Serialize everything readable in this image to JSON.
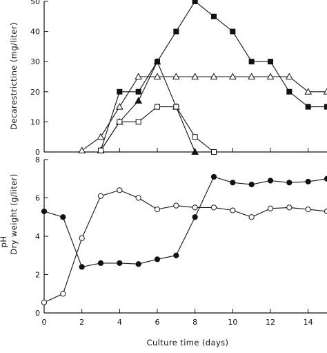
{
  "chart_data": [
    {
      "type": "line",
      "xlabel": "",
      "ylabel": "Decarestrictine (mg/liter)",
      "xlim": [
        0,
        15
      ],
      "ylim": [
        0,
        50
      ],
      "xticks": [
        0,
        2,
        4,
        6,
        8,
        10,
        12,
        14
      ],
      "yticks": [
        0,
        10,
        20,
        30,
        40,
        50
      ],
      "x_tick_labels_shown": false,
      "series": [
        {
          "marker": "filled-square",
          "x": [
            3,
            4,
            5,
            6,
            7,
            8,
            9,
            10,
            11,
            12,
            13,
            14,
            15
          ],
          "y": [
            0.5,
            20,
            20,
            30,
            40,
            50,
            45,
            40,
            30,
            30,
            20,
            15,
            15
          ]
        },
        {
          "marker": "open-triangle",
          "x": [
            2,
            3,
            4,
            5,
            6,
            7,
            8,
            9,
            10,
            11,
            12,
            13,
            14,
            15
          ],
          "y": [
            0.5,
            5,
            15,
            25,
            25,
            25,
            25,
            25,
            25,
            25,
            25,
            25,
            20,
            20
          ]
        },
        {
          "marker": "filled-triangle",
          "x": [
            3,
            4,
            5,
            6,
            7,
            8
          ],
          "y": [
            0.5,
            10,
            17,
            30,
            15,
            0
          ]
        },
        {
          "marker": "open-square",
          "x": [
            3,
            4,
            5,
            6,
            7,
            8,
            9
          ],
          "y": [
            0.5,
            10,
            10,
            15,
            15,
            5,
            0
          ]
        }
      ]
    },
    {
      "type": "line",
      "xlabel": "Culture time (days)",
      "ylabel": "pH\nDry weight (g/liter)",
      "xlim": [
        0,
        15
      ],
      "ylim": [
        0,
        8
      ],
      "xticks": [
        0,
        2,
        4,
        6,
        8,
        10,
        12,
        14
      ],
      "yticks": [
        0,
        2,
        4,
        6,
        8
      ],
      "series": [
        {
          "marker": "filled-circle",
          "x": [
            0,
            1,
            2,
            3,
            4,
            5,
            6,
            7,
            8,
            9,
            10,
            11,
            12,
            13,
            14,
            15
          ],
          "y": [
            5.3,
            5.0,
            2.4,
            2.6,
            2.6,
            2.55,
            2.8,
            3.0,
            5.0,
            7.1,
            6.8,
            6.7,
            6.9,
            6.8,
            6.85,
            7.0
          ]
        },
        {
          "marker": "open-circle",
          "x": [
            0,
            1,
            2,
            3,
            4,
            5,
            6,
            7,
            8,
            9,
            10,
            11,
            12,
            13,
            14,
            15
          ],
          "y": [
            0.55,
            1.0,
            3.9,
            6.1,
            6.4,
            6.0,
            5.4,
            5.6,
            5.5,
            5.5,
            5.35,
            5.0,
            5.45,
            5.5,
            5.4,
            5.3
          ]
        }
      ]
    }
  ]
}
